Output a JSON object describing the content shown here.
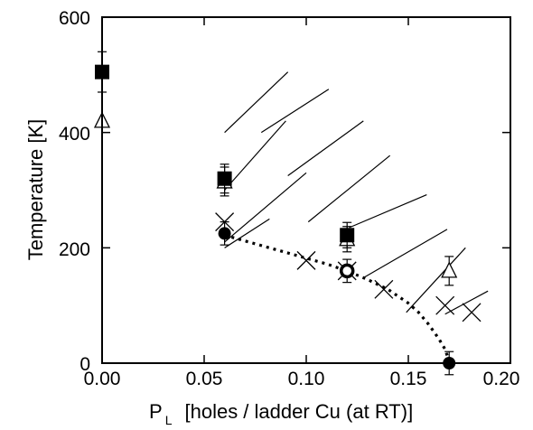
{
  "chart_data": {
    "type": "scatter",
    "title": "",
    "xlabel": "[holes / ladder Cu (at RT)]",
    "xlabel_symbol": "P",
    "xlabel_subscript": "L",
    "ylabel": "Temperature [K]",
    "xlim": [
      0.0,
      0.2
    ],
    "ylim": [
      0,
      600
    ],
    "xticks": [
      "0.00",
      "0.05",
      "0.10",
      "0.15",
      "0.20"
    ],
    "yticks": [
      "0",
      "200",
      "400",
      "600"
    ],
    "grid": false,
    "legend": "none",
    "series": [
      {
        "marker": "filled-square",
        "points": [
          {
            "x": 0.0,
            "y": 505,
            "err": 35
          },
          {
            "x": 0.06,
            "y": 320,
            "err": 25
          },
          {
            "x": 0.12,
            "y": 222,
            "err": 22
          }
        ]
      },
      {
        "marker": "open-triangle",
        "points": [
          {
            "x": 0.0,
            "y": 420,
            "err": 0
          },
          {
            "x": 0.06,
            "y": 315,
            "err": 25
          },
          {
            "x": 0.12,
            "y": 215,
            "err": 22
          },
          {
            "x": 0.17,
            "y": 160,
            "err": 25
          }
        ]
      },
      {
        "marker": "cross",
        "points": [
          {
            "x": 0.06,
            "y": 245
          },
          {
            "x": 0.1,
            "y": 178
          },
          {
            "x": 0.12,
            "y": 160
          },
          {
            "x": 0.138,
            "y": 128
          },
          {
            "x": 0.168,
            "y": 100
          },
          {
            "x": 0.181,
            "y": 88
          }
        ]
      },
      {
        "marker": "filled-circle",
        "points": [
          {
            "x": 0.06,
            "y": 225,
            "err": 20
          },
          {
            "x": 0.17,
            "y": 0,
            "err": 20
          }
        ]
      },
      {
        "marker": "circle-ring",
        "points": [
          {
            "x": 0.12,
            "y": 160,
            "err": 20
          }
        ]
      }
    ],
    "fit_curve": {
      "style": "dotted",
      "x": [
        0.06,
        0.07,
        0.08,
        0.09,
        0.1,
        0.11,
        0.12,
        0.13,
        0.14,
        0.15,
        0.155,
        0.16,
        0.165,
        0.168,
        0.17
      ],
      "y": [
        222,
        212,
        202,
        192,
        182,
        172,
        160,
        145,
        128,
        104,
        88,
        67,
        42,
        24,
        3
      ]
    },
    "hatch_region": {
      "lines": [
        {
          "x1": 0.06,
          "y1": 200,
          "x2": 0.082,
          "y2": 250
        },
        {
          "x1": 0.06,
          "y1": 210,
          "x2": 0.1,
          "y2": 330
        },
        {
          "x1": 0.06,
          "y1": 300,
          "x2": 0.09,
          "y2": 420
        },
        {
          "x1": 0.06,
          "y1": 400,
          "x2": 0.091,
          "y2": 505
        },
        {
          "x1": 0.078,
          "y1": 400,
          "x2": 0.111,
          "y2": 475
        },
        {
          "x1": 0.091,
          "y1": 325,
          "x2": 0.128,
          "y2": 420
        },
        {
          "x1": 0.101,
          "y1": 245,
          "x2": 0.141,
          "y2": 360
        },
        {
          "x1": 0.121,
          "y1": 235,
          "x2": 0.159,
          "y2": 292
        },
        {
          "x1": 0.128,
          "y1": 148,
          "x2": 0.169,
          "y2": 232
        },
        {
          "x1": 0.149,
          "y1": 88,
          "x2": 0.178,
          "y2": 200
        },
        {
          "x1": 0.168,
          "y1": 85,
          "x2": 0.189,
          "y2": 125
        }
      ]
    }
  }
}
